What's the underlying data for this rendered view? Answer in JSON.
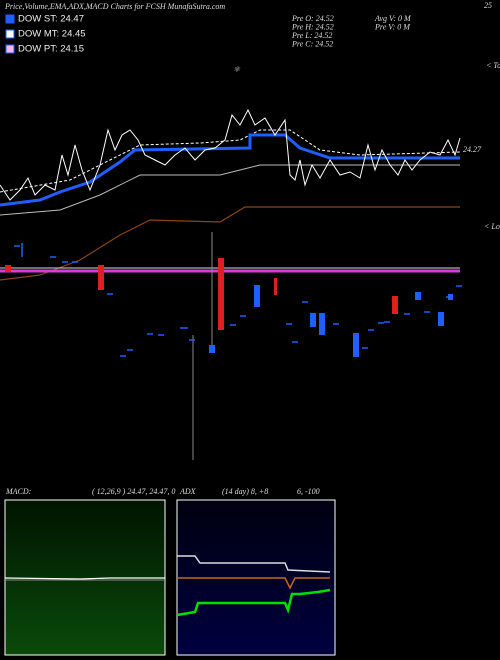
{
  "header": {
    "title": "Price,Volume,EMA,ADX,MACD Charts for FCSH MunafaSutra.com",
    "corner": "25"
  },
  "legend": [
    {
      "label": "DOW ST: 24.47",
      "color": "#1f5fff"
    },
    {
      "label": "DOW MT: 24.45",
      "color": "#ffffff"
    },
    {
      "label": "DOW PT: 24.15",
      "color": "#ffb6e6"
    }
  ],
  "pre_stats": [
    "Pre  O: 24.52",
    "Pre  H: 24.52",
    "Pre  L: 24.52",
    "Pre  C: 24.52"
  ],
  "volume_stats": [
    "Avg V: 0  M",
    "Pre  V: 0  M"
  ],
  "labels": {
    "tops": "< Tops",
    "last_price": "24.27",
    "lows": "< Lows"
  },
  "macd_panel": {
    "title": "MACD:",
    "values": "( 12,26,9 ) 24.47, 24.47, 0"
  },
  "adx_panel": {
    "title": "ADX",
    "values": "(14  day) 8, +8",
    "extra": "6, -100"
  }
}
